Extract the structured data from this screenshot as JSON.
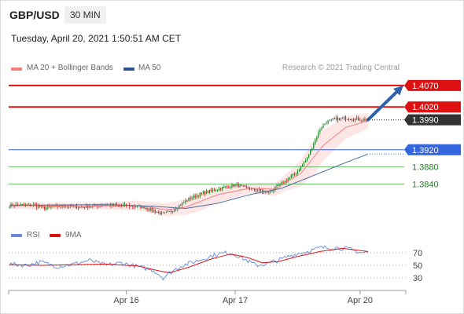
{
  "header": {
    "pair": "GBP/USD",
    "timeframe": "30 MIN",
    "timestamp": "Tuesday, April 20, 2021 1:50:51 AM CET",
    "credit": "Research © 2021 Trading Central"
  },
  "colors": {
    "candle_up": "#1e8a2e",
    "candle_down": "#cc1a1a",
    "ma20": "#f08080",
    "ma50": "#4a6fa0",
    "bollinger_fill": "#fde0e0",
    "resistance": "#dd1111",
    "pivot": "#3366dd",
    "support": "#66bb66",
    "rsi": "#6688dd",
    "rsi_ma": "#dd1111",
    "arrow": "#3060a8"
  },
  "chart_data": [
    {
      "type": "candlestick",
      "legend": [
        "MA 20 + Bollinger Bands",
        "MA 50"
      ],
      "x_ticks": [
        "Apr 16",
        "Apr 17",
        "Apr 20"
      ],
      "y_range": [
        1.374,
        1.409
      ],
      "levels": [
        {
          "label": "1.4070",
          "value": 1.407,
          "kind": "resistance"
        },
        {
          "label": "1.4020",
          "value": 1.402,
          "kind": "resistance"
        },
        {
          "label": "1.3990",
          "value": 1.399,
          "kind": "last_price"
        },
        {
          "label": "1.3920",
          "value": 1.392,
          "kind": "pivot"
        },
        {
          "label": "1.3880",
          "value": 1.388,
          "kind": "support"
        },
        {
          "label": "1.3840",
          "value": 1.384,
          "kind": "support"
        }
      ],
      "close_anchors": [
        [
          0,
          1.379
        ],
        [
          14,
          1.3792
        ],
        [
          22,
          1.3784
        ],
        [
          34,
          1.379
        ],
        [
          44,
          1.3786
        ],
        [
          60,
          1.3792
        ],
        [
          72,
          1.379
        ],
        [
          84,
          1.3786
        ],
        [
          90,
          1.3778
        ],
        [
          96,
          1.377
        ],
        [
          100,
          1.3775
        ],
        [
          106,
          1.379
        ],
        [
          112,
          1.3805
        ],
        [
          120,
          1.3818
        ],
        [
          128,
          1.3826
        ],
        [
          136,
          1.3834
        ],
        [
          142,
          1.3838
        ],
        [
          148,
          1.383
        ],
        [
          156,
          1.3825
        ],
        [
          162,
          1.382
        ],
        [
          168,
          1.3836
        ],
        [
          174,
          1.3852
        ],
        [
          180,
          1.387
        ],
        [
          186,
          1.39
        ],
        [
          190,
          1.3935
        ],
        [
          194,
          1.3968
        ],
        [
          198,
          1.3985
        ],
        [
          204,
          1.3992
        ],
        [
          212,
          1.3994
        ],
        [
          220,
          1.399
        ],
        [
          224,
          1.399
        ]
      ],
      "ma20_anchors": [
        [
          0,
          1.379
        ],
        [
          40,
          1.3788
        ],
        [
          80,
          1.379
        ],
        [
          98,
          1.378
        ],
        [
          110,
          1.3786
        ],
        [
          130,
          1.3815
        ],
        [
          150,
          1.383
        ],
        [
          166,
          1.3828
        ],
        [
          182,
          1.3865
        ],
        [
          196,
          1.393
        ],
        [
          210,
          1.3972
        ],
        [
          224,
          1.3988
        ]
      ],
      "ma50_anchors": [
        [
          0,
          1.379
        ],
        [
          60,
          1.3792
        ],
        [
          90,
          1.3788
        ],
        [
          110,
          1.3783
        ],
        [
          130,
          1.3795
        ],
        [
          150,
          1.3815
        ],
        [
          170,
          1.383
        ],
        [
          190,
          1.386
        ],
        [
          210,
          1.389
        ],
        [
          224,
          1.391
        ]
      ],
      "bollinger_half_width": [
        [
          0,
          0.0008
        ],
        [
          60,
          0.0008
        ],
        [
          96,
          0.0014
        ],
        [
          120,
          0.0022
        ],
        [
          150,
          0.0012
        ],
        [
          170,
          0.0016
        ],
        [
          190,
          0.004
        ],
        [
          205,
          0.003
        ],
        [
          224,
          0.0018
        ]
      ],
      "projection": {
        "from": [
          224,
          1.399
        ],
        "to": [
          246,
          1.407
        ]
      }
    },
    {
      "type": "line",
      "legend": [
        "RSI",
        "9MA"
      ],
      "y_ticks": [
        70,
        50,
        30
      ],
      "y_range": [
        15,
        85
      ],
      "rsi_anchors": [
        [
          0,
          52
        ],
        [
          10,
          50
        ],
        [
          20,
          55
        ],
        [
          30,
          48
        ],
        [
          40,
          52
        ],
        [
          50,
          58
        ],
        [
          60,
          50
        ],
        [
          70,
          54
        ],
        [
          80,
          48
        ],
        [
          90,
          42
        ],
        [
          96,
          30
        ],
        [
          100,
          38
        ],
        [
          108,
          50
        ],
        [
          116,
          56
        ],
        [
          124,
          63
        ],
        [
          130,
          68
        ],
        [
          136,
          70
        ],
        [
          142,
          66
        ],
        [
          148,
          58
        ],
        [
          154,
          50
        ],
        [
          160,
          52
        ],
        [
          168,
          58
        ],
        [
          176,
          66
        ],
        [
          186,
          72
        ],
        [
          194,
          78
        ],
        [
          204,
          78
        ],
        [
          212,
          76
        ],
        [
          220,
          70
        ],
        [
          224,
          71
        ]
      ],
      "ma9_anchors": [
        [
          0,
          51
        ],
        [
          20,
          50
        ],
        [
          40,
          51
        ],
        [
          60,
          52
        ],
        [
          80,
          49
        ],
        [
          92,
          42
        ],
        [
          100,
          38
        ],
        [
          112,
          47
        ],
        [
          126,
          60
        ],
        [
          138,
          68
        ],
        [
          148,
          63
        ],
        [
          158,
          54
        ],
        [
          168,
          56
        ],
        [
          180,
          64
        ],
        [
          194,
          72
        ],
        [
          208,
          77
        ],
        [
          224,
          72
        ]
      ]
    }
  ]
}
